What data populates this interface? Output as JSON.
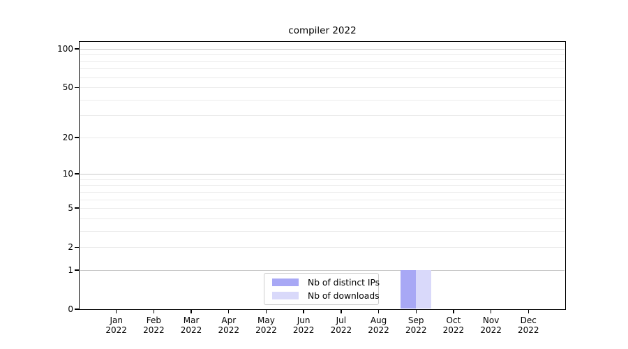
{
  "figure": {
    "title": "compiler 2022"
  },
  "chart_data": {
    "type": "bar",
    "title": "compiler 2022",
    "categories": [
      "Jan 2022",
      "Feb 2022",
      "Mar 2022",
      "Apr 2022",
      "May 2022",
      "Jun 2022",
      "Jul 2022",
      "Aug 2022",
      "Sep 2022",
      "Oct 2022",
      "Nov 2022",
      "Dec 2022"
    ],
    "x_tick_month_line": [
      "Jan",
      "Feb",
      "Mar",
      "Apr",
      "May",
      "Jun",
      "Jul",
      "Aug",
      "Sep",
      "Oct",
      "Nov",
      "Dec"
    ],
    "x_tick_year_line": "2022",
    "series": [
      {
        "name": "Nb of distinct IPs",
        "color": "#a8a8f5",
        "values": [
          0,
          0,
          0,
          0,
          0,
          0,
          0,
          0,
          1,
          0,
          0,
          0
        ]
      },
      {
        "name": "Nb of downloads",
        "color": "#d9d9fa",
        "values": [
          0,
          0,
          0,
          0,
          0,
          0,
          0,
          0,
          1,
          0,
          0,
          0
        ]
      }
    ],
    "xlabel": "",
    "ylabel": "",
    "y_axis_scale": "log(1+y)",
    "ylim": [
      0,
      112
    ],
    "y_tick_labels": [
      0,
      1,
      2,
      5,
      10,
      20,
      50,
      100
    ],
    "y_major_gridlines": [
      1,
      10,
      100
    ],
    "y_minor_gridlines": [
      2,
      3,
      4,
      5,
      6,
      7,
      8,
      9,
      20,
      30,
      40,
      50,
      60,
      70,
      80,
      90
    ],
    "grid": true,
    "legend_position": "lower center"
  },
  "legend": {
    "items": [
      {
        "label": "Nb of distinct IPs",
        "swatch_color": "#a8a8f5"
      },
      {
        "label": "Nb of downloads",
        "swatch_color": "#d9d9fa"
      }
    ]
  },
  "colors": {
    "background": "#ffffff",
    "axis": "#000000",
    "text": "#000000",
    "grid_major": "#c8c8c8",
    "grid_minor": "#ebebeb",
    "bar_distinct_ips": "#a8a8f5",
    "bar_downloads": "#d9d9fa",
    "legend_border": "#cccccc"
  }
}
